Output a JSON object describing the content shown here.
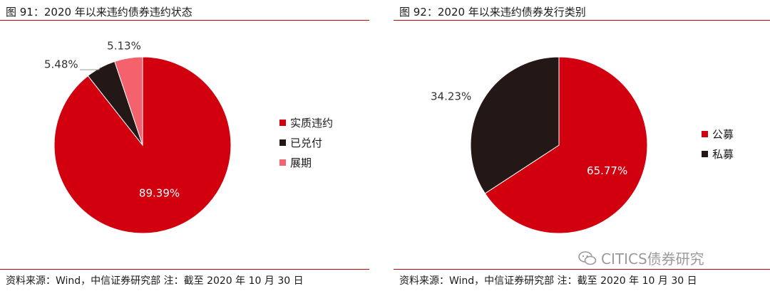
{
  "left": {
    "title": "图 91：2020 年以来违约债券违约状态",
    "source": "资料来源：Wind，中信证券研究部  注：截至 2020 年 10 月 30 日"
  },
  "right": {
    "title": "图 92：2020 年以来违约债券发行类别",
    "source": "资料来源：Wind，中信证券研究部  注：截至 2020 年 10 月 30 日"
  },
  "watermark": "CITICS债券研究",
  "colors": {
    "accent_rule": "#c00000"
  },
  "chart_data": [
    {
      "type": "pie",
      "title": "",
      "slices": [
        {
          "label": "实质违约",
          "value": 89.39,
          "value_label": "89.39%",
          "color": "#d2000f"
        },
        {
          "label": "已兑付",
          "value": 5.48,
          "value_label": "5.48%",
          "color": "#231815"
        },
        {
          "label": "展期",
          "value": 5.13,
          "value_label": "5.13%",
          "color": "#f4626e"
        }
      ],
      "legend": "right"
    },
    {
      "type": "pie",
      "title": "",
      "slices": [
        {
          "label": "公募",
          "value": 65.77,
          "value_label": "65.77%",
          "color": "#d2000f"
        },
        {
          "label": "私募",
          "value": 34.23,
          "value_label": "34.23%",
          "color": "#231815"
        }
      ],
      "legend": "right"
    }
  ]
}
